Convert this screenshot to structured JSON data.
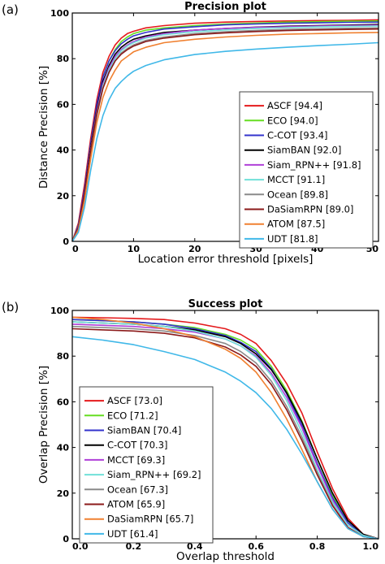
{
  "chart_data": [
    {
      "panel": "(a)",
      "type": "line",
      "title": "Precision plot",
      "xlabel": "Location error threshold [pixels]",
      "ylabel": "Distance Precision [%]",
      "xlim": [
        0,
        50
      ],
      "ylim": [
        0,
        100
      ],
      "xticks": [
        0,
        10,
        20,
        30,
        40,
        50
      ],
      "yticks": [
        0,
        20,
        40,
        60,
        80,
        100
      ],
      "grid": false,
      "legend_position": "bottom-right",
      "x": [
        0,
        1,
        2,
        3,
        4,
        5,
        6,
        7,
        8,
        9,
        10,
        12,
        15,
        20,
        25,
        30,
        35,
        40,
        45,
        50
      ],
      "series": [
        {
          "name": "ASCF [94.4]",
          "color": "#e41a1c",
          "values": [
            0,
            8,
            25,
            45,
            62,
            74,
            81,
            86,
            89,
            91,
            92,
            93.5,
            94.5,
            95.5,
            96,
            96.3,
            96.5,
            96.7,
            96.8,
            97
          ]
        },
        {
          "name": "ECO [94.0]",
          "color": "#66dd22",
          "values": [
            0,
            7,
            22,
            42,
            59,
            72,
            79,
            84,
            87.5,
            89.5,
            91,
            92.5,
            93.5,
            94.5,
            95.2,
            95.6,
            96,
            96.2,
            96.4,
            96.5
          ]
        },
        {
          "name": "C-COT [93.4]",
          "color": "#3333cc",
          "values": [
            0,
            7,
            23,
            43,
            60,
            72,
            79,
            83.5,
            86.5,
            88.5,
            90,
            91.5,
            93,
            94,
            94.8,
            95.2,
            95.5,
            95.7,
            95.9,
            96
          ]
        },
        {
          "name": "SiamBAN [92.0]",
          "color": "#000000",
          "values": [
            0,
            6,
            21,
            41,
            58,
            70,
            77,
            82,
            85,
            87,
            88.5,
            90,
            91.5,
            92.5,
            93.2,
            93.8,
            94.2,
            94.5,
            94.7,
            95
          ]
        },
        {
          "name": "Siam_RPN++ [91.8]",
          "color": "#b040d8",
          "values": [
            0,
            6,
            20,
            40,
            57,
            69,
            76,
            81,
            84,
            86,
            87.5,
            89.5,
            91,
            92.5,
            93.2,
            93.7,
            94,
            94.3,
            94.5,
            94.7
          ]
        },
        {
          "name": "MCCT [91.1]",
          "color": "#70e0d8",
          "values": [
            0,
            6,
            20,
            40,
            56,
            68,
            75,
            80,
            83.5,
            85.5,
            87,
            89,
            90.5,
            91.8,
            92.6,
            93.2,
            93.6,
            93.9,
            94.1,
            94.3
          ]
        },
        {
          "name": "Ocean [89.8]",
          "color": "#8a8a8a",
          "values": [
            0,
            5,
            19,
            38,
            55,
            67,
            74,
            79,
            82.5,
            84.5,
            86,
            88,
            89.5,
            91,
            91.8,
            92.4,
            92.8,
            93.1,
            93.3,
            93.5
          ]
        },
        {
          "name": "DaSiamRPN [89.0]",
          "color": "#8b1a1a",
          "values": [
            0,
            6,
            21,
            40,
            56,
            67,
            74,
            79,
            82,
            84,
            85.5,
            87.5,
            89,
            90.5,
            91.3,
            91.9,
            92.3,
            92.6,
            92.8,
            93
          ]
        },
        {
          "name": "ATOM [87.5]",
          "color": "#f08030",
          "values": [
            0,
            5,
            18,
            36,
            52,
            63,
            70,
            75,
            79,
            81,
            83,
            85,
            87,
            88.5,
            89.5,
            90.2,
            90.7,
            91,
            91.3,
            91.5
          ]
        },
        {
          "name": "UDT [81.8]",
          "color": "#40b8e8",
          "values": [
            0,
            4,
            15,
            31,
            45,
            55,
            62,
            67,
            70,
            72.5,
            74.5,
            77,
            79.5,
            81.8,
            83.2,
            84.2,
            85,
            85.7,
            86.3,
            87
          ]
        }
      ]
    },
    {
      "panel": "(b)",
      "type": "line",
      "title": "Success plot",
      "xlabel": "Overlap threshold",
      "ylabel": "Overlap Precision [%]",
      "xlim": [
        0,
        1
      ],
      "ylim": [
        0,
        100
      ],
      "xticks": [
        0.0,
        0.2,
        0.4,
        0.6,
        0.8,
        1.0
      ],
      "yticks": [
        0,
        20,
        40,
        60,
        80,
        100
      ],
      "grid": false,
      "legend_position": "bottom-left",
      "x": [
        0,
        0.1,
        0.2,
        0.3,
        0.4,
        0.5,
        0.55,
        0.6,
        0.65,
        0.7,
        0.75,
        0.8,
        0.85,
        0.9,
        0.95,
        1.0
      ],
      "series": [
        {
          "name": "ASCF [73.0]",
          "color": "#e41a1c",
          "values": [
            97,
            96.8,
            96.5,
            96,
            94.5,
            92,
            89.5,
            85.5,
            78,
            68,
            55,
            38,
            22,
            9,
            2,
            0
          ]
        },
        {
          "name": "ECO [71.2]",
          "color": "#66dd22",
          "values": [
            96,
            95.5,
            95,
            94,
            92.5,
            89.5,
            87,
            83,
            75.5,
            65,
            51.5,
            35,
            19,
            7,
            1.5,
            0
          ]
        },
        {
          "name": "SiamBAN [70.4]",
          "color": "#3333cc",
          "values": [
            96,
            95.5,
            95,
            94,
            92,
            89,
            86,
            82,
            74.5,
            63.5,
            49.5,
            33,
            18,
            7,
            1.5,
            0
          ]
        },
        {
          "name": "C-COT [70.3]",
          "color": "#000000",
          "values": [
            95,
            94.5,
            94,
            93,
            91.5,
            88.5,
            85.5,
            81,
            74,
            64,
            51,
            35,
            20,
            8,
            2,
            0
          ]
        },
        {
          "name": "MCCT [69.3]",
          "color": "#b040d8",
          "values": [
            94,
            93.5,
            93,
            92,
            90.5,
            87.5,
            84.5,
            80,
            72.5,
            62,
            48.5,
            32,
            17,
            6,
            1.5,
            0
          ]
        },
        {
          "name": "Siam_RPN++ [69.2]",
          "color": "#70e0d8",
          "values": [
            95,
            94.5,
            94,
            93,
            91,
            87.5,
            84.5,
            79.5,
            71.5,
            60.5,
            46.5,
            30,
            16,
            6,
            1.5,
            0
          ]
        },
        {
          "name": "Ocean [67.3]",
          "color": "#8a8a8a",
          "values": [
            93,
            92.5,
            92,
            91,
            89,
            85.5,
            82,
            77,
            69,
            58,
            44.5,
            29,
            15,
            5,
            1,
            0
          ]
        },
        {
          "name": "ATOM [65.9]",
          "color": "#8b1a1a",
          "values": [
            92,
            91.5,
            91,
            90,
            88,
            84,
            80.5,
            75.5,
            67.5,
            56.5,
            43,
            28,
            14.5,
            5,
            1,
            0
          ]
        },
        {
          "name": "DaSiamRPN [65.7]",
          "color": "#f08030",
          "values": [
            97,
            96,
            94.5,
            92,
            88.5,
            83,
            79,
            73,
            64,
            52.5,
            39,
            25,
            13,
            4.5,
            1,
            0
          ]
        },
        {
          "name": "UDT [61.4]",
          "color": "#40b8e8",
          "values": [
            88.5,
            87,
            85,
            82,
            78.5,
            73,
            69,
            64,
            57,
            48,
            37,
            25,
            13,
            4.5,
            1,
            0
          ]
        }
      ]
    }
  ]
}
